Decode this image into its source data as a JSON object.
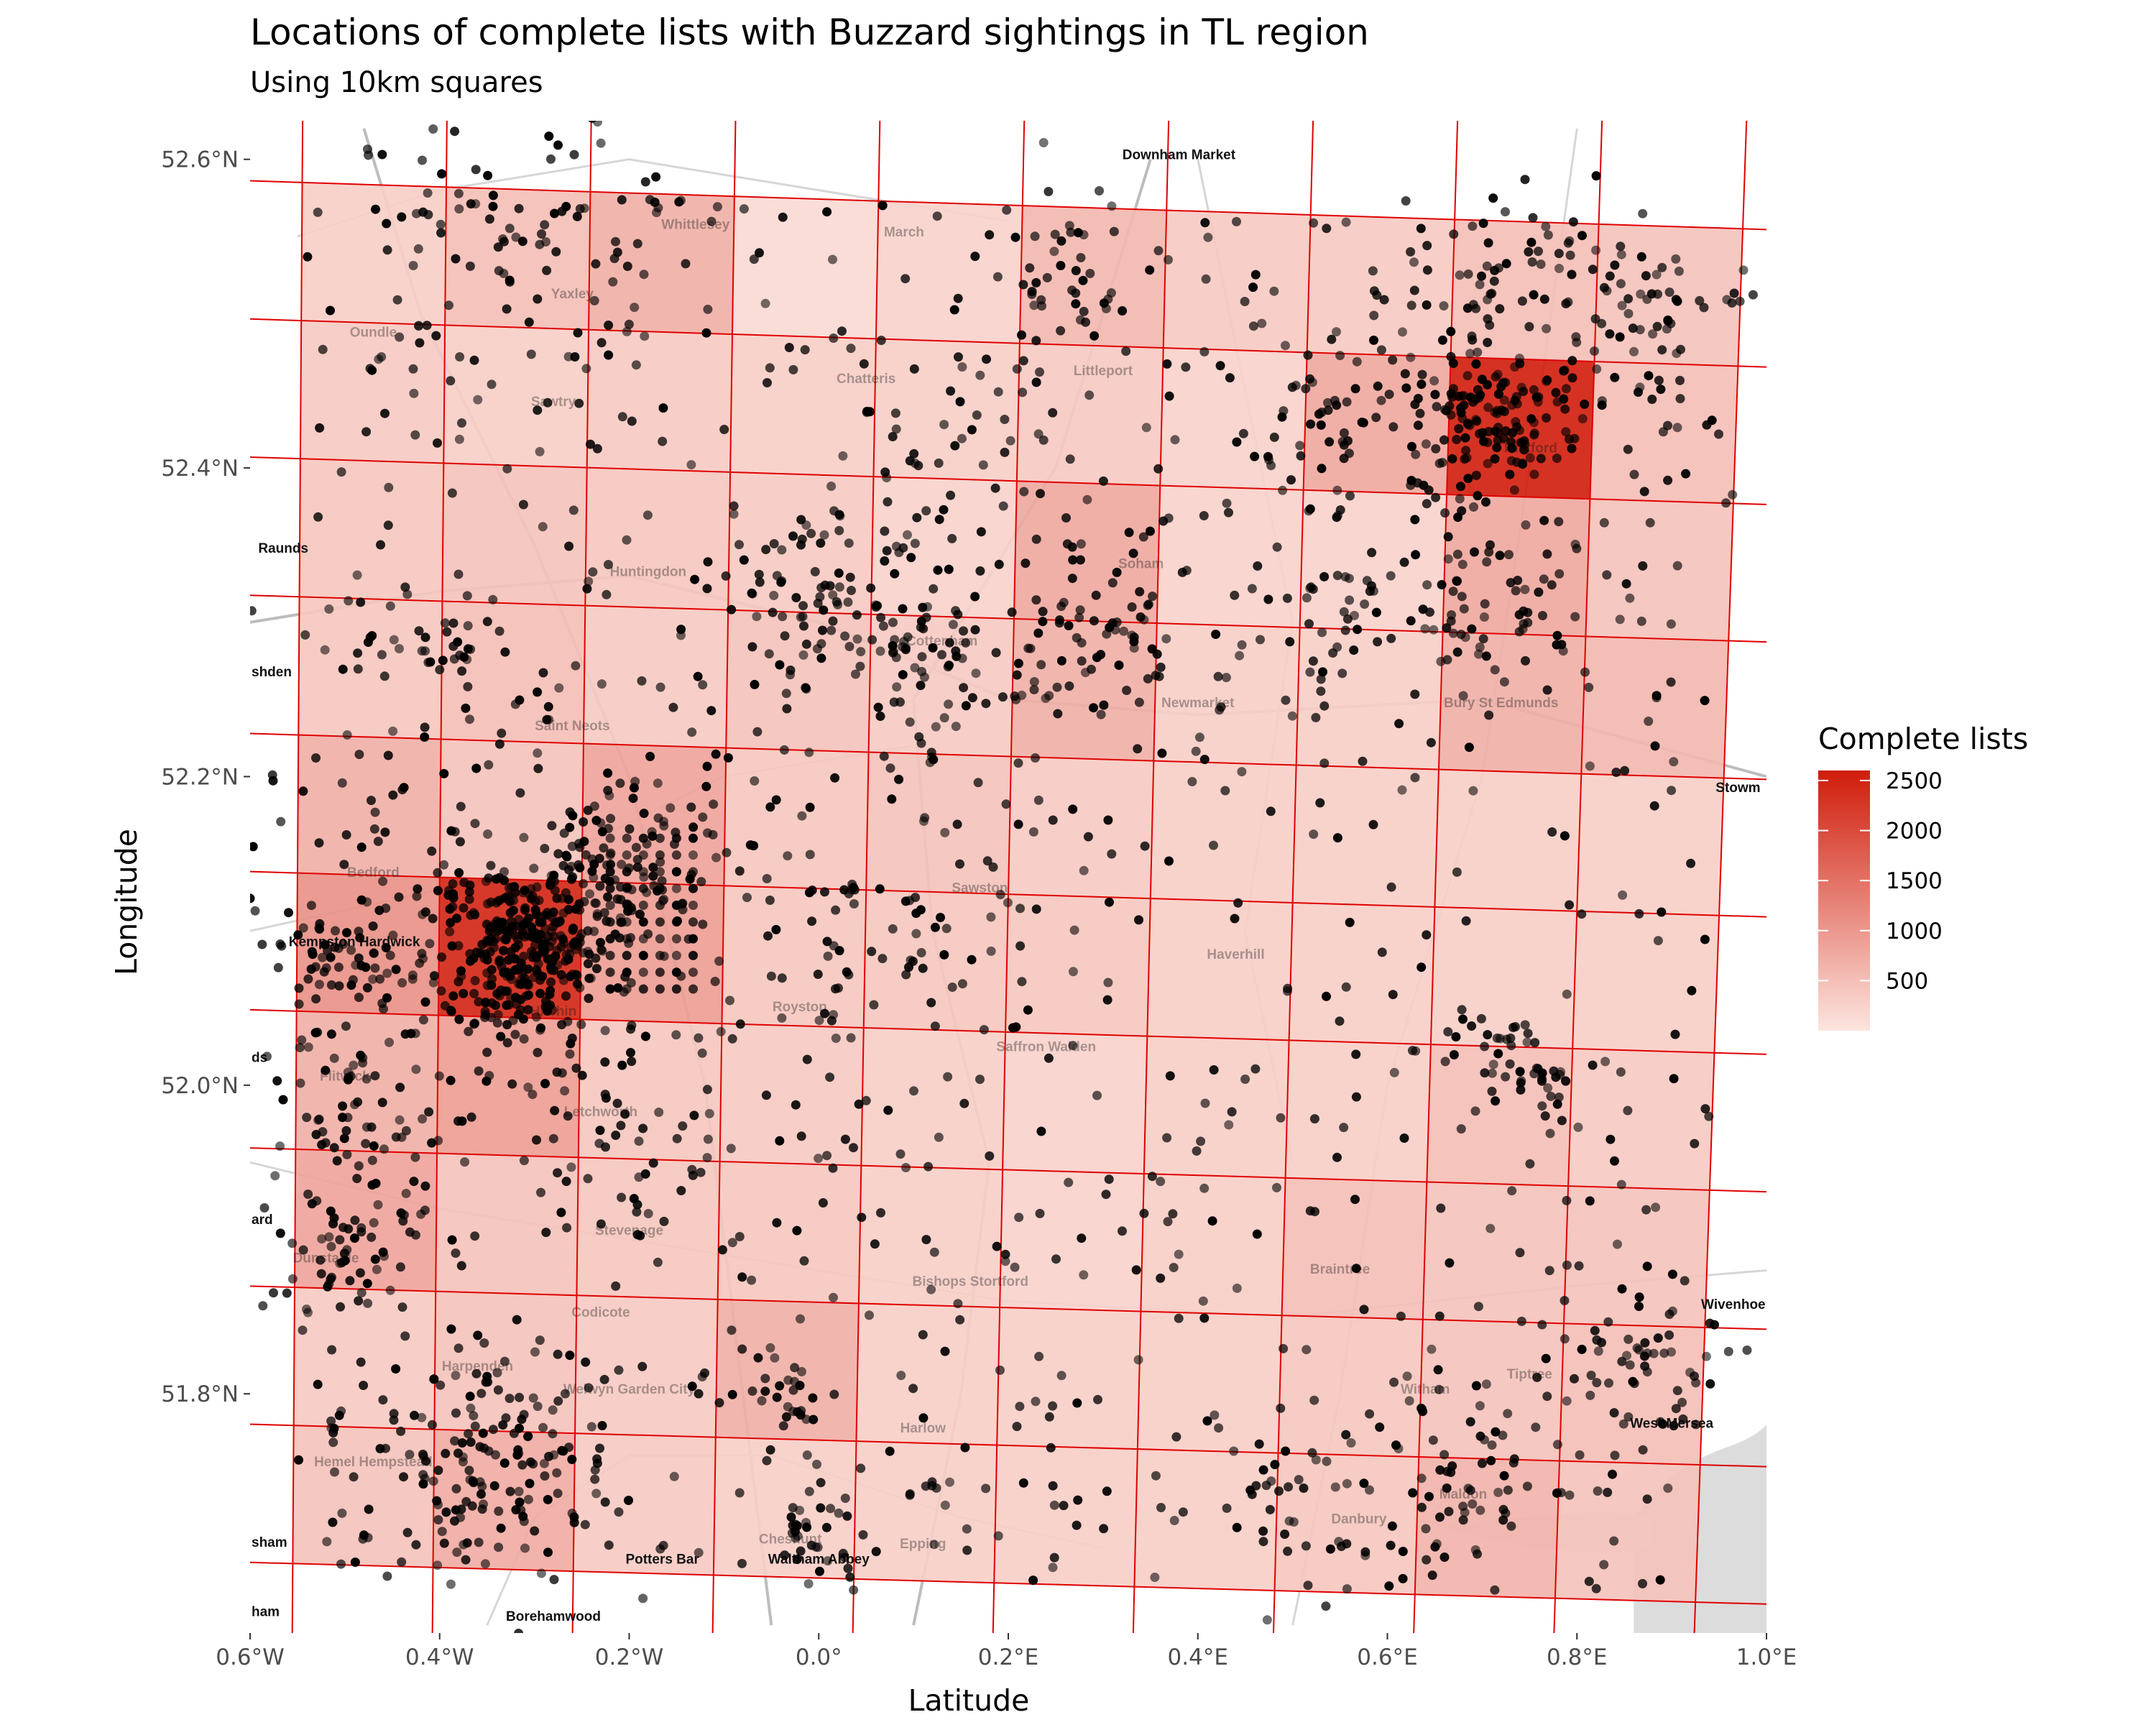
{
  "chart_data": {
    "type": "heatmap",
    "title": "Locations of complete lists with Buzzard sightings in TL region",
    "subtitle": "Using 10km squares",
    "xlabel": "Latitude",
    "ylabel": "Longitude",
    "xlim": [
      -0.6,
      1.0
    ],
    "ylim": [
      51.645,
      52.625
    ],
    "x_ticks": [
      {
        "value": -0.6,
        "label": "0.6°W"
      },
      {
        "value": -0.4,
        "label": "0.4°W"
      },
      {
        "value": -0.2,
        "label": "0.2°W"
      },
      {
        "value": 0.0,
        "label": "0.0°"
      },
      {
        "value": 0.2,
        "label": "0.2°E"
      },
      {
        "value": 0.4,
        "label": "0.4°E"
      },
      {
        "value": 0.6,
        "label": "0.6°E"
      },
      {
        "value": 0.8,
        "label": "0.8°E"
      },
      {
        "value": 1.0,
        "label": "1.0°E"
      }
    ],
    "y_ticks": [
      {
        "value": 51.8,
        "label": "51.8°N"
      },
      {
        "value": 52.0,
        "label": "52.0°N"
      },
      {
        "value": 52.2,
        "label": "52.2°N"
      },
      {
        "value": 52.4,
        "label": "52.4°N"
      },
      {
        "value": 52.6,
        "label": "52.6°N"
      }
    ],
    "legend": {
      "title": "Complete lists",
      "position": "right",
      "range": [
        0,
        2600
      ],
      "breaks": [
        500,
        1000,
        1500,
        2000,
        2500
      ],
      "color_low": "#fce5df",
      "color_high": "#d01c0b"
    },
    "grid_lines_color": "#e00000",
    "point_color": "#000000",
    "squares": {
      "columns": 10,
      "rows": 10,
      "counts": [
        [
          300,
          500,
          700,
          150,
          250,
          600,
          350,
          350,
          500,
          450
        ],
        [
          350,
          300,
          350,
          300,
          300,
          350,
          250,
          800,
          2600,
          500
        ],
        [
          400,
          450,
          400,
          350,
          250,
          800,
          250,
          250,
          800,
          450
        ],
        [
          400,
          500,
          350,
          450,
          350,
          700,
          300,
          300,
          700,
          600
        ],
        [
          700,
          450,
          850,
          400,
          450,
          350,
          300,
          300,
          300,
          300
        ],
        [
          1100,
          2500,
          950,
          400,
          400,
          400,
          300,
          300,
          300,
          300
        ],
        [
          700,
          950,
          400,
          350,
          300,
          250,
          300,
          300,
          500,
          350
        ],
        [
          850,
          450,
          400,
          400,
          300,
          250,
          300,
          500,
          450,
          450
        ],
        [
          350,
          450,
          350,
          700,
          300,
          300,
          300,
          400,
          450,
          500
        ],
        [
          450,
          750,
          350,
          300,
          300,
          300,
          300,
          400,
          650,
          450
        ]
      ]
    },
    "place_labels": [
      {
        "name": "Downham Market",
        "lon": 0.38,
        "lat": 52.6
      },
      {
        "name": "Raunds",
        "lon": -0.565,
        "lat": 52.345
      },
      {
        "name": "shden",
        "lon": -0.6,
        "lat": 52.265
      },
      {
        "name": "Kempston Hardwick",
        "lon": -0.49,
        "lat": 52.09
      },
      {
        "name": "Stowm",
        "lon": 0.97,
        "lat": 52.19
      },
      {
        "name": "ds",
        "lon": -0.6,
        "lat": 52.015
      },
      {
        "name": "ard",
        "lon": -0.6,
        "lat": 51.91
      },
      {
        "name": "Wivenhoe",
        "lon": 0.965,
        "lat": 51.855
      },
      {
        "name": "West Mersea",
        "lon": 0.9,
        "lat": 51.778
      },
      {
        "name": "sham",
        "lon": -0.6,
        "lat": 51.701
      },
      {
        "name": "ham",
        "lon": -0.6,
        "lat": 51.656
      },
      {
        "name": "Potters Bar",
        "lon": -0.165,
        "lat": 51.69
      },
      {
        "name": "Waltham Abbey",
        "lon": 0.0,
        "lat": 51.69
      },
      {
        "name": "Borehamwood",
        "lon": -0.28,
        "lat": 51.653
      }
    ],
    "faint_labels": [
      {
        "name": "Whittlesey",
        "lon": -0.13,
        "lat": 52.555
      },
      {
        "name": "March",
        "lon": 0.09,
        "lat": 52.55
      },
      {
        "name": "Yaxley",
        "lon": -0.26,
        "lat": 52.51
      },
      {
        "name": "Oundle",
        "lon": -0.47,
        "lat": 52.485
      },
      {
        "name": "Chatteris",
        "lon": 0.05,
        "lat": 52.455
      },
      {
        "name": "Littleport",
        "lon": 0.3,
        "lat": 52.46
      },
      {
        "name": "Sawtry",
        "lon": -0.28,
        "lat": 52.44
      },
      {
        "name": "Thetford",
        "lon": 0.75,
        "lat": 52.41
      },
      {
        "name": "Huntingdon",
        "lon": -0.18,
        "lat": 52.33
      },
      {
        "name": "Soham",
        "lon": 0.34,
        "lat": 52.335
      },
      {
        "name": "Cottenham",
        "lon": 0.13,
        "lat": 52.285
      },
      {
        "name": "Newmarket",
        "lon": 0.4,
        "lat": 52.245
      },
      {
        "name": "Bury St Edmunds",
        "lon": 0.72,
        "lat": 52.245
      },
      {
        "name": "Saint Neots",
        "lon": -0.26,
        "lat": 52.23
      },
      {
        "name": "Bedford",
        "lon": -0.47,
        "lat": 52.135
      },
      {
        "name": "Sawston",
        "lon": 0.17,
        "lat": 52.125
      },
      {
        "name": "Haverhill",
        "lon": 0.44,
        "lat": 52.082
      },
      {
        "name": "Royston",
        "lon": -0.02,
        "lat": 52.048
      },
      {
        "name": "Saffron Walden",
        "lon": 0.24,
        "lat": 52.022
      },
      {
        "name": "Hitchin",
        "lon": -0.28,
        "lat": 52.045
      },
      {
        "name": "Flitwick",
        "lon": -0.5,
        "lat": 52.003
      },
      {
        "name": "Letchworth",
        "lon": -0.23,
        "lat": 51.98
      },
      {
        "name": "Stevenage",
        "lon": -0.2,
        "lat": 51.903
      },
      {
        "name": "Dunstable",
        "lon": -0.52,
        "lat": 51.885
      },
      {
        "name": "Bishops Stortford",
        "lon": 0.16,
        "lat": 51.87
      },
      {
        "name": "Braintree",
        "lon": 0.55,
        "lat": 51.878
      },
      {
        "name": "Codicote",
        "lon": -0.23,
        "lat": 51.85
      },
      {
        "name": "Harpenden",
        "lon": -0.36,
        "lat": 51.815
      },
      {
        "name": "Welwyn Garden City",
        "lon": -0.2,
        "lat": 51.8
      },
      {
        "name": "Witham",
        "lon": 0.64,
        "lat": 51.8
      },
      {
        "name": "Tiptree",
        "lon": 0.75,
        "lat": 51.81
      },
      {
        "name": "Harlow",
        "lon": 0.11,
        "lat": 51.775
      },
      {
        "name": "Hemel Hempstead",
        "lon": -0.47,
        "lat": 51.753
      },
      {
        "name": "Maldon",
        "lon": 0.68,
        "lat": 51.732
      },
      {
        "name": "Danbury",
        "lon": 0.57,
        "lat": 51.716
      },
      {
        "name": "Cheshunt",
        "lon": -0.03,
        "lat": 51.703
      },
      {
        "name": "Epping",
        "lon": 0.11,
        "lat": 51.7
      }
    ],
    "point_clusters": [
      {
        "lon": -0.31,
        "lat": 52.09,
        "spread": 0.045,
        "n": 320
      },
      {
        "lon": -0.2,
        "lat": 52.14,
        "spread": 0.05,
        "n": 120
      },
      {
        "lon": -0.42,
        "lat": 52.115,
        "spread": 0.09,
        "n": 90
      },
      {
        "lon": 0.71,
        "lat": 52.43,
        "spread": 0.04,
        "n": 130
      },
      {
        "lon": 0.55,
        "lat": 52.44,
        "spread": 0.06,
        "n": 60
      },
      {
        "lon": 0.29,
        "lat": 52.3,
        "spread": 0.05,
        "n": 70
      },
      {
        "lon": 0.26,
        "lat": 52.52,
        "spread": 0.04,
        "n": 40
      },
      {
        "lon": -0.32,
        "lat": 52.56,
        "spread": 0.1,
        "n": 90
      },
      {
        "lon": 0.7,
        "lat": 52.52,
        "spread": 0.04,
        "n": 40
      },
      {
        "lon": 0.86,
        "lat": 52.5,
        "spread": 0.06,
        "n": 70
      },
      {
        "lon": 0.71,
        "lat": 52.31,
        "spread": 0.06,
        "n": 60
      },
      {
        "lon": 0.57,
        "lat": 52.31,
        "spread": 0.05,
        "n": 40
      },
      {
        "lon": 0.75,
        "lat": 52.01,
        "spread": 0.03,
        "n": 40
      },
      {
        "lon": -0.52,
        "lat": 51.9,
        "spread": 0.05,
        "n": 70
      },
      {
        "lon": -0.35,
        "lat": 51.75,
        "spread": 0.07,
        "n": 150
      },
      {
        "lon": 0.0,
        "lat": 51.71,
        "spread": 0.025,
        "n": 30
      },
      {
        "lon": 0.68,
        "lat": 51.74,
        "spread": 0.04,
        "n": 40
      },
      {
        "lon": 0.87,
        "lat": 51.82,
        "spread": 0.04,
        "n": 50
      },
      {
        "lon": -0.02,
        "lat": 51.795,
        "spread": 0.03,
        "n": 25
      },
      {
        "lon": -0.4,
        "lat": 52.28,
        "spread": 0.05,
        "n": 40
      },
      {
        "lon": 0.12,
        "lat": 52.26,
        "spread": 0.05,
        "n": 60
      },
      {
        "lon": 0.0,
        "lat": 52.31,
        "spread": 0.04,
        "n": 40
      },
      {
        "lon": 0.03,
        "lat": 52.35,
        "spread": 0.05,
        "n": 40
      },
      {
        "lon": 0.14,
        "lat": 52.42,
        "spread": 0.05,
        "n": 30
      },
      {
        "lon": -0.52,
        "lat": 52.08,
        "spread": 0.03,
        "n": 40
      },
      {
        "lon": -0.48,
        "lat": 52.0,
        "spread": 0.05,
        "n": 50
      },
      {
        "lon": -0.2,
        "lat": 51.97,
        "spread": 0.06,
        "n": 50
      },
      {
        "lon": 0.1,
        "lat": 52.09,
        "spread": 0.06,
        "n": 50
      },
      {
        "lon": 0.55,
        "lat": 51.72,
        "spread": 0.06,
        "n": 40
      }
    ],
    "background_points": 900,
    "lattice": {
      "lon_start": -0.22,
      "lon_end": -0.13,
      "lat_start": 52.16,
      "lat_end": 52.06,
      "step": 0.0175
    }
  }
}
